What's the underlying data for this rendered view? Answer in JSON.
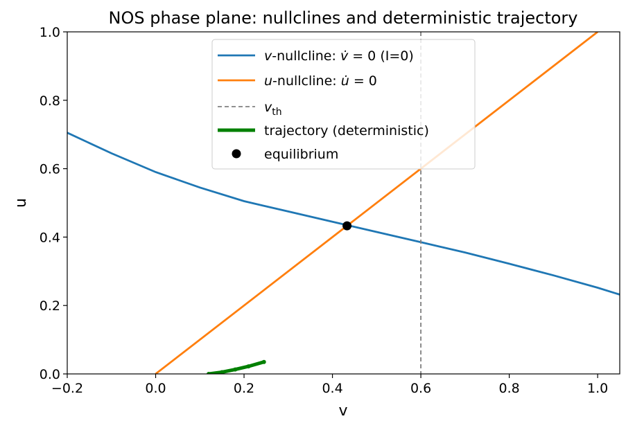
{
  "chart_data": {
    "type": "line",
    "title": "NOS phase plane: nullclines and deterministic trajectory",
    "xlabel": "v",
    "ylabel": "u",
    "xlim": [
      -0.2,
      1.05
    ],
    "ylim": [
      0.0,
      1.0
    ],
    "xticks": [
      "−0.2",
      "0.0",
      "0.2",
      "0.4",
      "0.6",
      "0.8",
      "1.0"
    ],
    "xtick_values": [
      -0.2,
      0.0,
      0.2,
      0.4,
      0.6,
      0.8,
      1.0
    ],
    "yticks": [
      "0.0",
      "0.2",
      "0.4",
      "0.6",
      "0.8",
      "1.0"
    ],
    "ytick_values": [
      0.0,
      0.2,
      0.4,
      0.6,
      0.8,
      1.0
    ],
    "grid": false,
    "legend_position": "top-center",
    "series": [
      {
        "name": "v-nullcline: v̇ = 0 (I=0)",
        "name_parts": {
          "italic": "v",
          "rest": "-nullcline: ",
          "math_var": "v̇",
          "math_rest": " = 0",
          "suffix": " (I=0)"
        },
        "color": "#1f77b4",
        "kind": "line",
        "x": [
          -0.2,
          -0.1,
          0.0,
          0.1,
          0.2,
          0.3,
          0.4,
          0.5,
          0.6,
          0.7,
          0.8,
          0.9,
          1.0,
          1.05
        ],
        "y": [
          0.705,
          0.645,
          0.59,
          0.545,
          0.505,
          0.475,
          0.445,
          0.415,
          0.385,
          0.355,
          0.322,
          0.288,
          0.252,
          0.232
        ]
      },
      {
        "name": "u-nullcline: u̇ = 0",
        "name_parts": {
          "italic": "u",
          "rest": "-nullcline: ",
          "math_var": "u̇",
          "math_rest": " = 0",
          "suffix": ""
        },
        "color": "#ff7f0e",
        "kind": "line",
        "x": [
          0.0,
          1.0
        ],
        "y": [
          0.0,
          1.0
        ]
      },
      {
        "name": "v_th",
        "name_parts": {
          "italic": "v",
          "sub": "th"
        },
        "color": "#808080",
        "kind": "vline",
        "x": 0.6
      },
      {
        "name": "trajectory (deterministic)",
        "color": "#008000",
        "kind": "trajectory",
        "x": [
          0.12,
          0.15,
          0.18,
          0.21,
          0.245
        ],
        "y": [
          0.0,
          0.005,
          0.013,
          0.022,
          0.035
        ]
      },
      {
        "name": "equilibrium",
        "color": "#000000",
        "kind": "point",
        "x": [
          0.433
        ],
        "y": [
          0.433
        ]
      }
    ]
  }
}
